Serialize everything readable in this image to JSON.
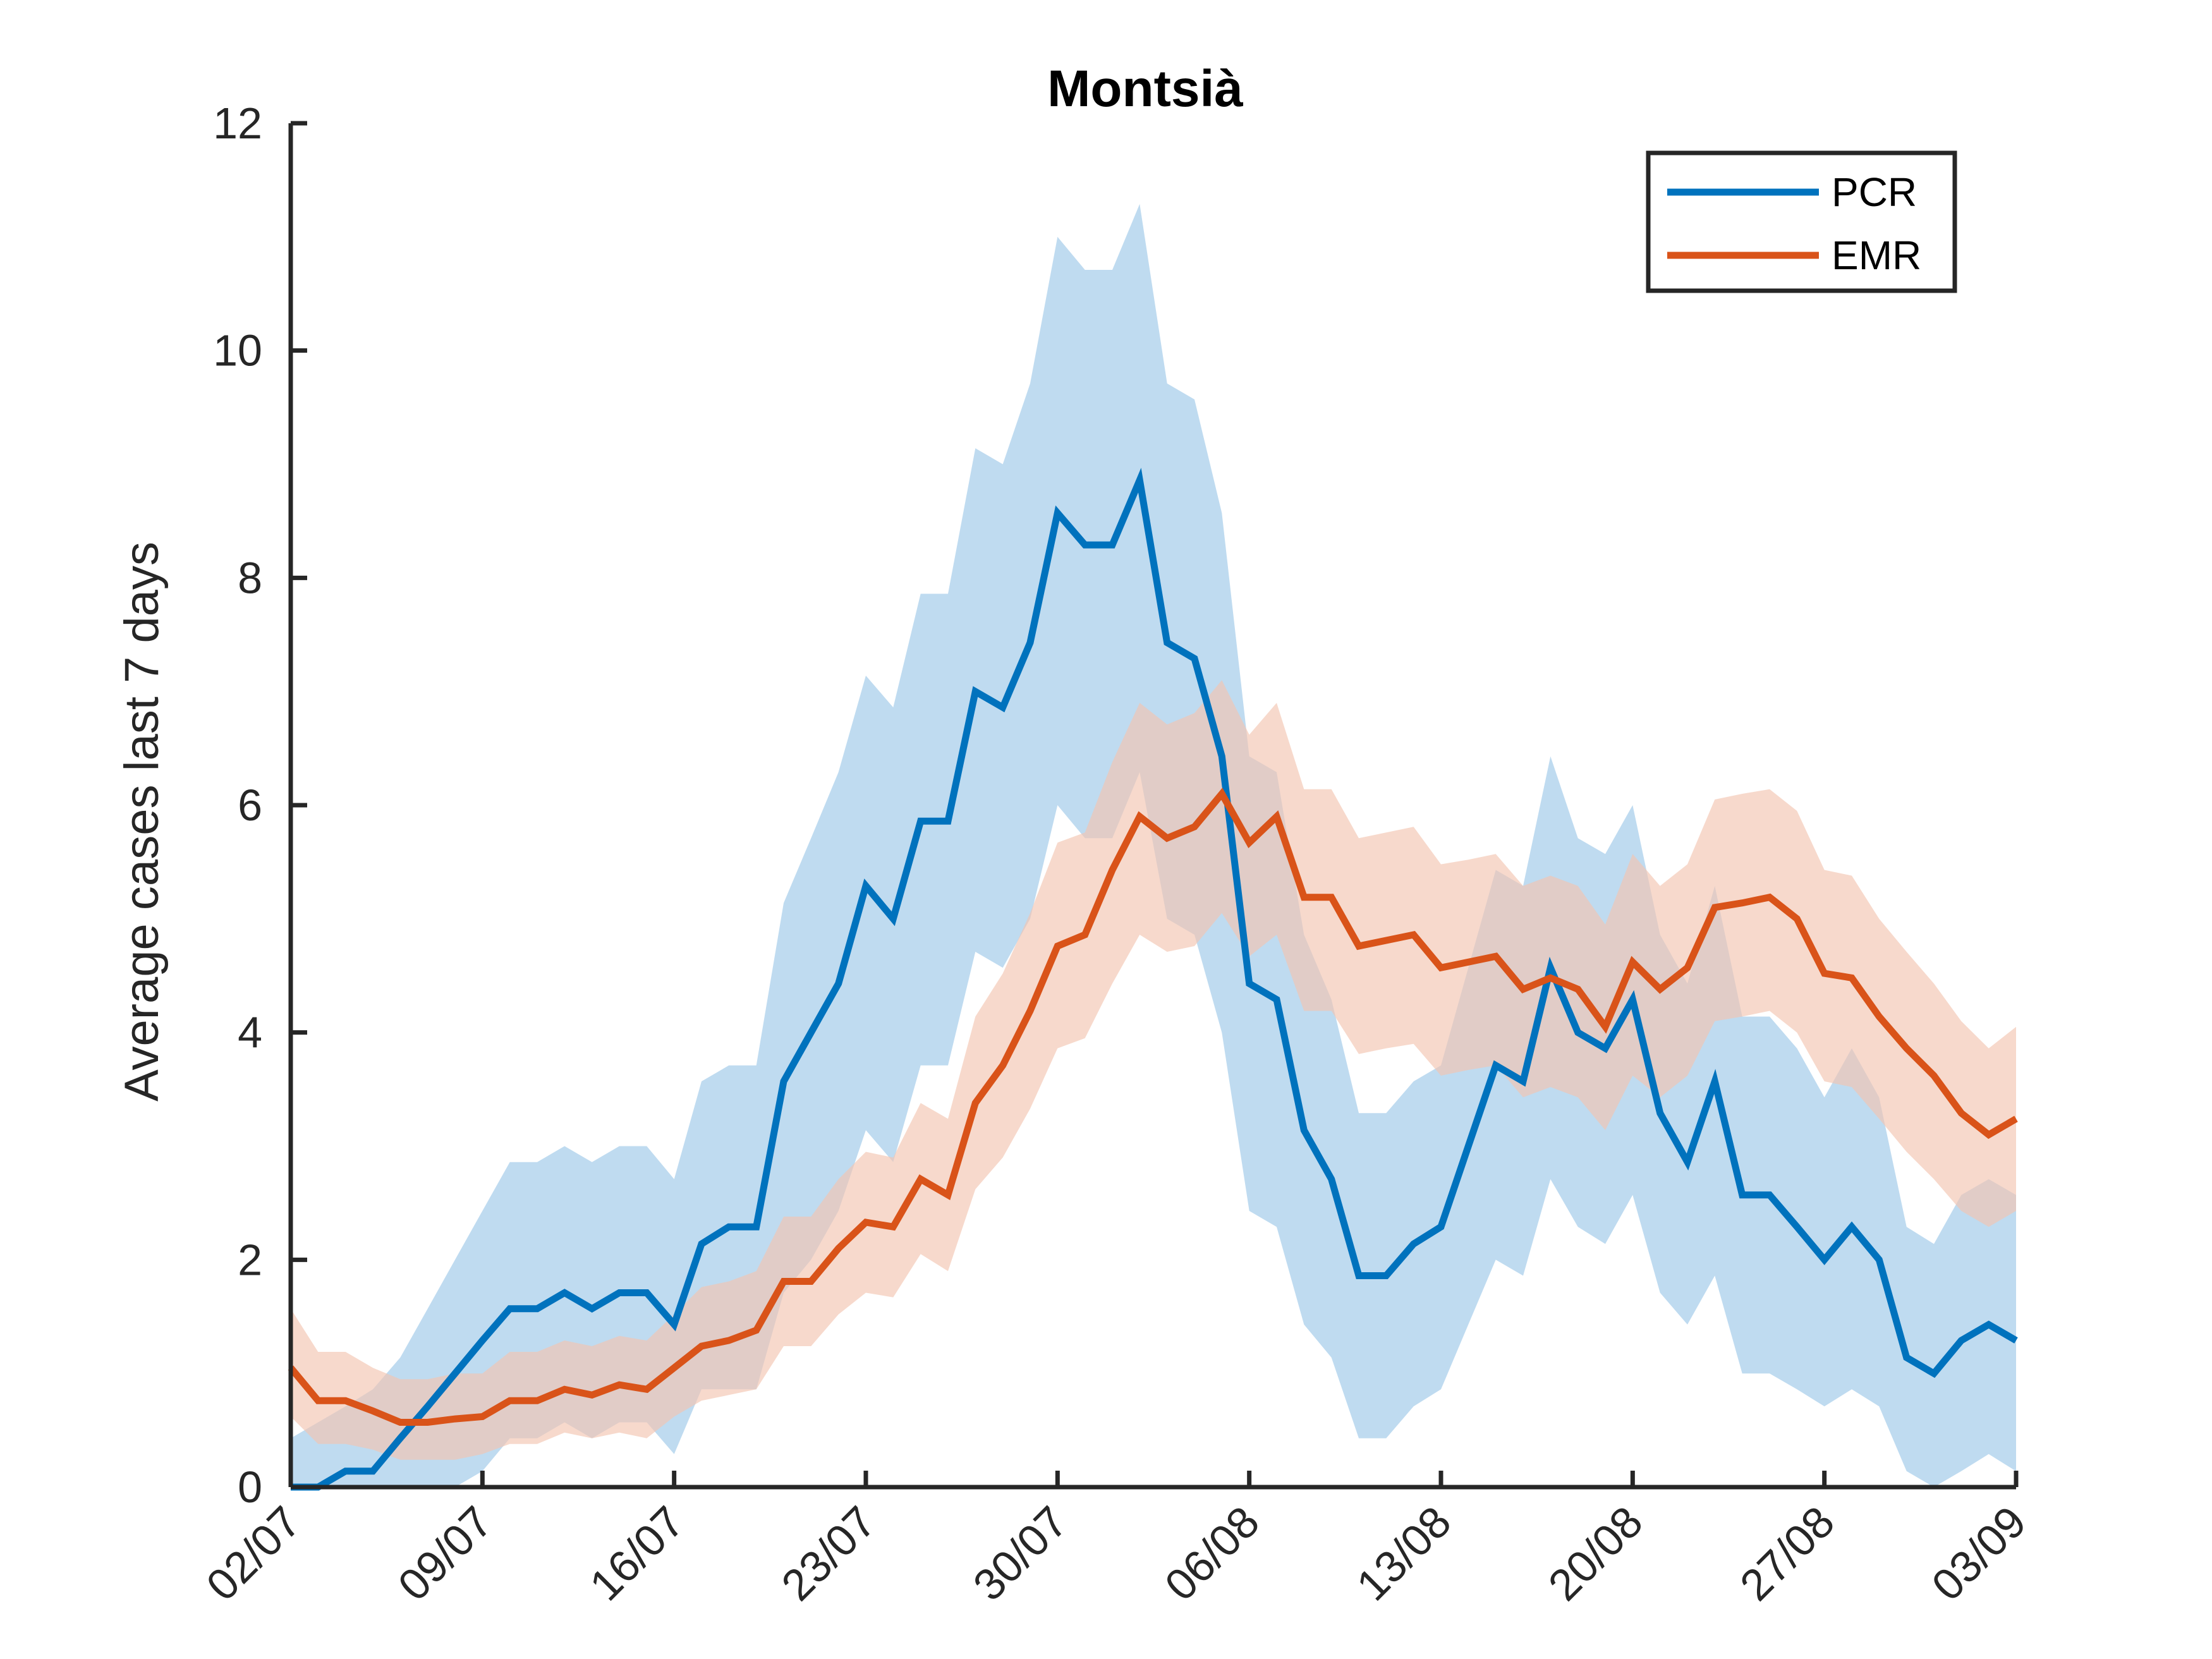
{
  "chart_data": {
    "type": "line",
    "title": "Montsià",
    "xlabel": "",
    "ylabel": "Average cases last 7 days",
    "xlim": [
      "02/07",
      "03/09"
    ],
    "ylim": [
      0,
      12
    ],
    "yticks": [
      0,
      2,
      4,
      6,
      8,
      10,
      12
    ],
    "xticks": [
      "02/07",
      "09/07",
      "16/07",
      "23/07",
      "30/07",
      "06/08",
      "13/08",
      "20/08",
      "27/08",
      "03/09"
    ],
    "grid": false,
    "legend": "top-right",
    "x": [
      "02/07",
      "03/07",
      "04/07",
      "05/07",
      "06/07",
      "07/07",
      "08/07",
      "09/07",
      "10/07",
      "11/07",
      "12/07",
      "13/07",
      "14/07",
      "15/07",
      "16/07",
      "17/07",
      "18/07",
      "19/07",
      "20/07",
      "21/07",
      "22/07",
      "23/07",
      "24/07",
      "25/07",
      "26/07",
      "27/07",
      "28/07",
      "29/07",
      "30/07",
      "31/07",
      "01/08",
      "02/08",
      "03/08",
      "04/08",
      "05/08",
      "06/08",
      "07/08",
      "08/08",
      "09/08",
      "10/08",
      "11/08",
      "12/08",
      "13/08",
      "14/08",
      "15/08",
      "16/08",
      "17/08",
      "18/08",
      "19/08",
      "20/08",
      "21/08",
      "22/08",
      "23/08",
      "24/08",
      "25/08",
      "26/08",
      "27/08",
      "28/08",
      "29/08",
      "30/08",
      "31/08",
      "01/09",
      "02/09",
      "03/09"
    ],
    "series": [
      {
        "name": "PCR",
        "color": "#0072BD",
        "band_color": "#9DC8E8",
        "values": [
          0,
          0,
          0.14,
          0.14,
          0.43,
          0.71,
          1.0,
          1.29,
          1.57,
          1.57,
          1.71,
          1.57,
          1.71,
          1.71,
          1.43,
          2.14,
          2.29,
          2.29,
          3.57,
          4.0,
          4.43,
          5.29,
          5.0,
          5.86,
          5.86,
          7.0,
          6.86,
          7.43,
          8.57,
          8.29,
          8.29,
          8.86,
          7.43,
          7.29,
          6.43,
          4.43,
          4.29,
          3.14,
          2.71,
          1.86,
          1.86,
          2.14,
          2.29,
          3.0,
          3.71,
          3.57,
          4.57,
          4.0,
          3.86,
          4.29,
          3.29,
          2.86,
          3.57,
          2.57,
          2.57,
          2.29,
          2.0,
          2.29,
          2.0,
          1.14,
          1.0,
          1.29,
          1.43,
          1.29
        ],
        "lower": [
          0,
          0,
          0,
          0,
          0,
          0,
          0,
          0.14,
          0.43,
          0.43,
          0.57,
          0.43,
          0.57,
          0.57,
          0.29,
          0.86,
          0.86,
          0.86,
          1.71,
          2.0,
          2.43,
          3.14,
          2.86,
          3.71,
          3.71,
          4.71,
          4.57,
          5.0,
          6.0,
          5.71,
          5.71,
          6.29,
          5.0,
          4.86,
          4.0,
          2.43,
          2.29,
          1.43,
          1.14,
          0.43,
          0.43,
          0.71,
          0.86,
          1.43,
          2.0,
          1.86,
          2.71,
          2.29,
          2.14,
          2.57,
          1.71,
          1.43,
          1.86,
          1.0,
          1.0,
          0.86,
          0.71,
          0.86,
          0.71,
          0.14,
          0,
          0.14,
          0.29,
          0.14
        ],
        "upper": [
          0.43,
          0.57,
          0.71,
          0.86,
          1.14,
          1.57,
          2.0,
          2.43,
          2.86,
          2.86,
          3.0,
          2.86,
          3.0,
          3.0,
          2.71,
          3.57,
          3.71,
          3.71,
          5.14,
          5.71,
          6.29,
          7.14,
          6.86,
          7.86,
          7.86,
          9.14,
          9.0,
          9.71,
          11.0,
          10.71,
          10.71,
          11.29,
          9.71,
          9.57,
          8.57,
          6.43,
          6.29,
          4.86,
          4.29,
          3.29,
          3.29,
          3.57,
          3.71,
          4.57,
          5.43,
          5.29,
          6.43,
          5.71,
          5.57,
          6.0,
          4.86,
          4.43,
          5.29,
          4.14,
          4.14,
          3.86,
          3.43,
          3.86,
          3.43,
          2.29,
          2.14,
          2.57,
          2.71,
          2.57
        ]
      },
      {
        "name": "EMR",
        "color": "#D95319",
        "band_color": "#F2C4B0",
        "values": [
          1.05,
          0.76,
          0.76,
          0.67,
          0.57,
          0.57,
          0.6,
          0.62,
          0.76,
          0.76,
          0.86,
          0.81,
          0.9,
          0.86,
          1.05,
          1.24,
          1.29,
          1.38,
          1.81,
          1.81,
          2.1,
          2.33,
          2.29,
          2.71,
          2.57,
          3.38,
          3.71,
          4.19,
          4.76,
          4.86,
          5.43,
          5.9,
          5.71,
          5.81,
          6.1,
          5.67,
          5.9,
          5.19,
          5.19,
          4.76,
          4.81,
          4.86,
          4.57,
          4.62,
          4.67,
          4.38,
          4.48,
          4.38,
          4.05,
          4.62,
          4.38,
          4.57,
          5.1,
          5.14,
          5.19,
          5.0,
          4.52,
          4.48,
          4.14,
          3.86,
          3.62,
          3.29,
          3.1,
          3.24
        ],
        "lower": [
          0.62,
          0.38,
          0.38,
          0.33,
          0.24,
          0.24,
          0.24,
          0.29,
          0.38,
          0.38,
          0.48,
          0.43,
          0.48,
          0.43,
          0.62,
          0.76,
          0.81,
          0.86,
          1.24,
          1.24,
          1.52,
          1.71,
          1.67,
          2.05,
          1.9,
          2.62,
          2.9,
          3.33,
          3.86,
          3.95,
          4.43,
          4.86,
          4.71,
          4.76,
          5.05,
          4.67,
          4.86,
          4.19,
          4.19,
          3.81,
          3.86,
          3.9,
          3.62,
          3.67,
          3.71,
          3.43,
          3.52,
          3.43,
          3.14,
          3.62,
          3.43,
          3.62,
          4.1,
          4.14,
          4.19,
          4.0,
          3.57,
          3.52,
          3.24,
          2.95,
          2.71,
          2.43,
          2.29,
          2.43
        ],
        "upper": [
          1.57,
          1.19,
          1.19,
          1.05,
          0.95,
          0.95,
          1.0,
          1.0,
          1.19,
          1.19,
          1.29,
          1.24,
          1.33,
          1.29,
          1.52,
          1.76,
          1.81,
          1.9,
          2.38,
          2.38,
          2.71,
          2.95,
          2.9,
          3.38,
          3.24,
          4.14,
          4.52,
          5.05,
          5.67,
          5.76,
          6.38,
          6.9,
          6.71,
          6.81,
          7.1,
          6.62,
          6.9,
          6.14,
          6.14,
          5.71,
          5.76,
          5.81,
          5.48,
          5.52,
          5.57,
          5.29,
          5.38,
          5.29,
          4.95,
          5.57,
          5.29,
          5.48,
          6.05,
          6.1,
          6.14,
          5.95,
          5.43,
          5.38,
          5.0,
          4.71,
          4.43,
          4.1,
          3.86,
          4.05
        ]
      }
    ]
  }
}
